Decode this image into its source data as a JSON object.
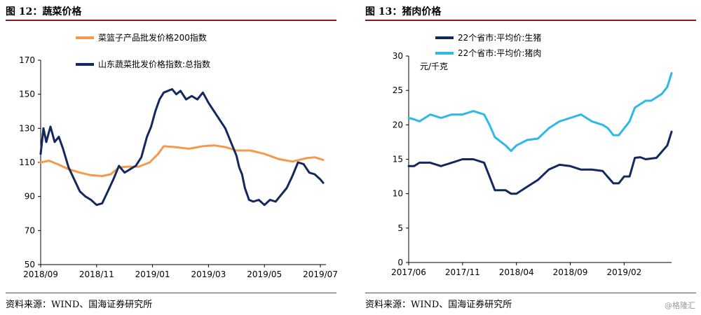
{
  "left": {
    "title": "图 12：蔬菜价格",
    "source": "资料来源：WIND、国海证券研究所"
  },
  "right": {
    "title": "图 13：猪肉价格",
    "source": "资料来源：WIND、国海证券研究所"
  },
  "watermark": "@格隆汇",
  "chart_data": [
    {
      "type": "line",
      "title": "",
      "xlabel": "",
      "ylabel": "",
      "ylim": [
        50,
        170
      ],
      "yticks": [
        50,
        70,
        90,
        110,
        130,
        150,
        170
      ],
      "xlim": [
        0,
        10.2
      ],
      "xticks": [
        {
          "x": 0,
          "label": "2018/09"
        },
        {
          "x": 2,
          "label": "2018/11"
        },
        {
          "x": 4,
          "label": "2019/01"
        },
        {
          "x": 6,
          "label": "2019/03"
        },
        {
          "x": 8,
          "label": "2019/05"
        },
        {
          "x": 10,
          "label": "2019/07"
        }
      ],
      "legend_position": "top",
      "series": [
        {
          "name": "菜篮子产品批发价格200指数",
          "color": "#f39a4c",
          "x": [
            0,
            0.3,
            0.6,
            1.0,
            1.4,
            1.8,
            2.2,
            2.5,
            2.8,
            3.1,
            3.5,
            3.9,
            4.2,
            4.4,
            4.8,
            5.3,
            5.8,
            6.2,
            6.6,
            7.0,
            7.5,
            8.0,
            8.5,
            9.0,
            9.5,
            9.8,
            10.1
          ],
          "values": [
            110,
            111,
            109,
            106,
            104,
            102.5,
            102,
            103,
            107,
            107.5,
            107.5,
            110,
            115,
            119.5,
            119,
            118,
            119.5,
            120,
            119,
            117,
            117,
            115,
            112,
            110.5,
            112.5,
            113,
            111.5
          ]
        },
        {
          "name": "山东蔬菜批发价格指数:总指数",
          "color": "#13285e",
          "x": [
            0,
            0.1,
            0.2,
            0.35,
            0.5,
            0.65,
            0.8,
            1.0,
            1.2,
            1.4,
            1.6,
            1.8,
            2.0,
            2.2,
            2.4,
            2.6,
            2.8,
            3.0,
            3.2,
            3.4,
            3.6,
            3.8,
            3.95,
            4.1,
            4.25,
            4.4,
            4.55,
            4.7,
            4.85,
            5.0,
            5.2,
            5.4,
            5.6,
            5.8,
            6.0,
            6.2,
            6.4,
            6.6,
            6.8,
            7.0,
            7.1,
            7.2,
            7.3,
            7.45,
            7.6,
            7.8,
            8.0,
            8.2,
            8.4,
            8.6,
            8.8,
            9.0,
            9.2,
            9.4,
            9.6,
            9.8,
            10.0,
            10.1
          ],
          "values": [
            115,
            130,
            122,
            131,
            122,
            125,
            118,
            107,
            100,
            93,
            90,
            88,
            85,
            86,
            93,
            100,
            108,
            104,
            106,
            108,
            113,
            125,
            131,
            140,
            147,
            151,
            152,
            153,
            150,
            152,
            147,
            149,
            147,
            151,
            145,
            140,
            135,
            130,
            122,
            114,
            107,
            103,
            95,
            88,
            87,
            88,
            85,
            88,
            87,
            91,
            95,
            102,
            110,
            109,
            104,
            103,
            100,
            98
          ]
        }
      ]
    },
    {
      "type": "line",
      "title": "",
      "xlabel": "",
      "ylabel": "元/千克",
      "ylim": [
        0,
        30
      ],
      "yticks": [
        0,
        5,
        10,
        15,
        20,
        25,
        30
      ],
      "xlim": [
        0,
        24.4
      ],
      "xticks": [
        {
          "x": 0,
          "label": "2017/06"
        },
        {
          "x": 5,
          "label": "2017/11"
        },
        {
          "x": 10,
          "label": "2018/04"
        },
        {
          "x": 15,
          "label": "2018/09"
        },
        {
          "x": 20,
          "label": "2019/02"
        }
      ],
      "legend_position": "top",
      "series": [
        {
          "name": "22个省市:平均价:生猪",
          "color": "#13285e",
          "x": [
            0,
            0.5,
            1,
            2,
            3,
            4,
            5,
            6,
            7,
            7.5,
            8,
            9,
            9.5,
            10,
            11,
            11.5,
            12,
            13,
            14,
            15,
            16,
            17,
            18,
            19,
            19.5,
            20,
            20.5,
            21,
            21.5,
            22,
            23,
            24,
            24.4
          ],
          "values": [
            14,
            14,
            14.5,
            14.5,
            14,
            14.5,
            15,
            15,
            14.5,
            12.5,
            10.5,
            10.5,
            10,
            10,
            11,
            11.5,
            12,
            13.5,
            14.2,
            14,
            13.5,
            13.5,
            13.3,
            11.5,
            11.5,
            12.5,
            12.5,
            15.2,
            15.3,
            15,
            15.2,
            17,
            19
          ]
        },
        {
          "name": "22个省市:平均价:猪肉",
          "color": "#2db8e8",
          "x": [
            0,
            0.5,
            1,
            1.5,
            2,
            3,
            4,
            5,
            6,
            7,
            7.5,
            8,
            9,
            9.5,
            10,
            11,
            12,
            13,
            14,
            15,
            16,
            17,
            18,
            18.5,
            19,
            19.5,
            20,
            20.5,
            21,
            21.5,
            22,
            22.5,
            23,
            23.5,
            24,
            24.4
          ],
          "values": [
            21,
            20.8,
            20.5,
            21,
            21.5,
            21,
            21.5,
            21.5,
            22,
            21.5,
            20,
            18.2,
            17,
            16.2,
            17,
            17.8,
            18,
            19.5,
            20.5,
            21,
            21.5,
            20.5,
            20,
            19.5,
            18.5,
            18.5,
            19.5,
            20.5,
            22.5,
            23,
            23.5,
            23.5,
            24,
            24.5,
            25.5,
            27.5
          ]
        }
      ]
    }
  ]
}
